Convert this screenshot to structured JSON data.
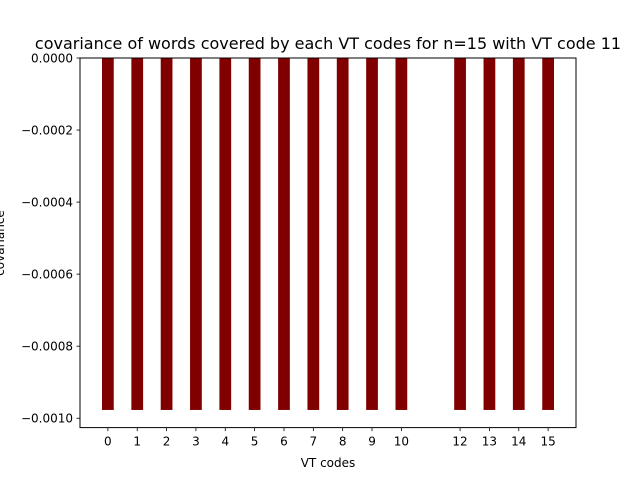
{
  "chart_data": {
    "type": "bar",
    "title": "covariance of words covered by each VT codes for n=15 with VT code 11",
    "xlabel": "VT codes",
    "ylabel": "covariance",
    "categories": [
      "0",
      "1",
      "2",
      "3",
      "4",
      "5",
      "6",
      "7",
      "8",
      "9",
      "10",
      "12",
      "13",
      "14",
      "15"
    ],
    "x": [
      0,
      1,
      2,
      3,
      4,
      5,
      6,
      7,
      8,
      9,
      10,
      12,
      13,
      14,
      15
    ],
    "values": [
      -0.000977,
      -0.000977,
      -0.000977,
      -0.000977,
      -0.000977,
      -0.000977,
      -0.000977,
      -0.000977,
      -0.000977,
      -0.000977,
      -0.000977,
      -0.000977,
      -0.000977,
      -0.000977,
      -0.000977
    ],
    "xlim": [
      -0.95,
      15.95
    ],
    "ylim": [
      -0.001026,
      0
    ],
    "yticks": [
      0,
      -0.0002,
      -0.0004,
      -0.0006,
      -0.0008,
      -0.001
    ],
    "ytick_labels": [
      "0.0000",
      "−0.0002",
      "−0.0004",
      "−0.0006",
      "−0.0008",
      "−0.0010"
    ],
    "grid": false,
    "bar_color": "#800000"
  }
}
